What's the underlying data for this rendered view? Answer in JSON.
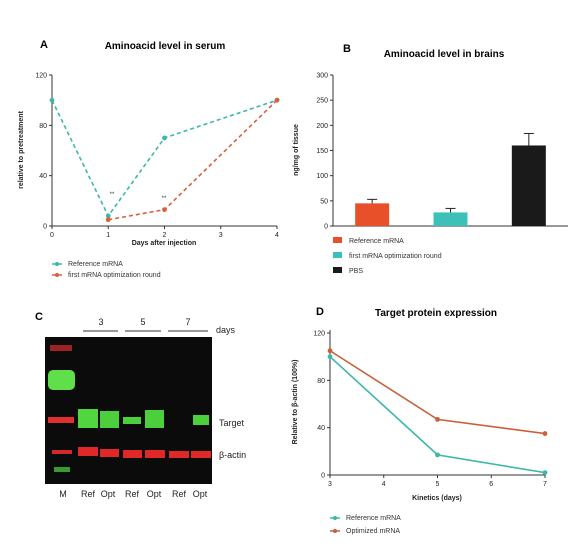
{
  "chart_data": [
    {
      "panel": "A",
      "type": "line",
      "title": "Aminoacid level in serum",
      "xlabel": "Days after injection",
      "ylabel": "relative to pretreatment",
      "xlim": [
        0,
        4
      ],
      "ylim": [
        0,
        120
      ],
      "xticks": [
        "0",
        "1",
        "2",
        "3",
        "4"
      ],
      "yticks": [
        "0",
        "40",
        "80",
        "120"
      ],
      "annotations": [
        "**",
        "**"
      ],
      "legend_position": "bottom",
      "series": [
        {
          "name": "Reference mRNA",
          "color": "#3cb8a8",
          "x": [
            0,
            1,
            2,
            4
          ],
          "values": [
            100,
            8,
            70,
            100
          ]
        },
        {
          "name": "first mRNA optimization round",
          "color": "#d9603f",
          "x": [
            1,
            2,
            4
          ],
          "values": [
            5,
            13,
            100
          ]
        }
      ]
    },
    {
      "panel": "B",
      "type": "bar",
      "title": "Aminoacid level in brains",
      "ylabel": "ng/mg of tissue",
      "ylim": [
        0,
        300
      ],
      "yticks": [
        "0",
        "50",
        "100",
        "150",
        "200",
        "250",
        "300"
      ],
      "legend_position": "bottom",
      "categories": [
        "Reference mRNA",
        "first mRNA optimization round",
        "PBS"
      ],
      "values": [
        45,
        27,
        160
      ],
      "colors": [
        "#e8502a",
        "#3cc0b8",
        "#1a1a1a"
      ]
    },
    {
      "panel": "D",
      "type": "line",
      "title": "Target protein expression",
      "xlabel": "Kinetics (days)",
      "ylabel": "Relative to β-actin (100%)",
      "xlim": [
        3,
        7
      ],
      "ylim": [
        0,
        120
      ],
      "xticks": [
        "3",
        "4",
        "5",
        "6",
        "7"
      ],
      "yticks": [
        "0",
        "40",
        "80",
        "120"
      ],
      "legend_position": "bottom",
      "series": [
        {
          "name": "Reference mRNA",
          "color": "#3cb8a8",
          "x": [
            3,
            5,
            7
          ],
          "values": [
            100,
            17,
            2
          ]
        },
        {
          "name": "Optimized mRNA",
          "color": "#c8603a",
          "x": [
            3,
            5,
            7
          ],
          "values": [
            105,
            47,
            35
          ]
        }
      ]
    }
  ],
  "blot": {
    "panel": "C",
    "days_label": "days",
    "day_groups": [
      "3",
      "5",
      "7"
    ],
    "band_labels": [
      "Target",
      "β-actin"
    ],
    "lane_labels": [
      "M",
      "Ref",
      "Opt",
      "Ref",
      "Opt",
      "Ref",
      "Opt"
    ]
  },
  "panel_letters": {
    "a": "A",
    "b": "B",
    "c": "C",
    "d": "D"
  }
}
